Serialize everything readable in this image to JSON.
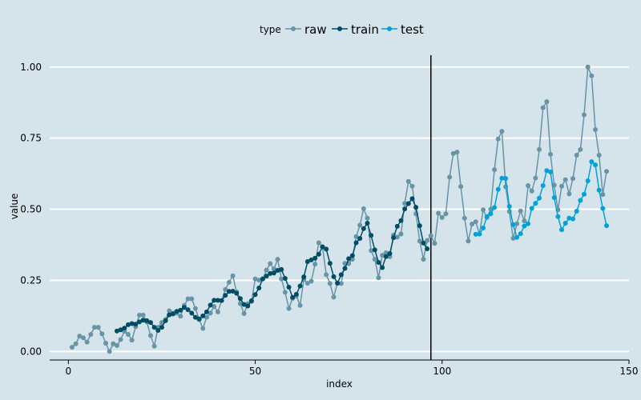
{
  "chart_data": {
    "type": "line",
    "xlabel": "index",
    "ylabel": "value",
    "xlim": [
      -5,
      150
    ],
    "ylim": [
      -0.03,
      1.05
    ],
    "x_ticks": [
      0,
      50,
      100,
      150
    ],
    "y_ticks": [
      0.0,
      0.25,
      0.5,
      0.75,
      1.0
    ],
    "y_tick_labels": [
      "0.00",
      "0.25",
      "0.50",
      "0.75",
      "1.00"
    ],
    "grid": "horizontal major lines",
    "vline_x": 97,
    "legend": {
      "title": "type",
      "position": "top"
    },
    "colors": {
      "background": "#d5e4eb",
      "grid": "#ffffff",
      "raw": "#6794a7",
      "train": "#014d64",
      "test": "#01a2d9",
      "vline": "#000000"
    },
    "series": [
      {
        "name": "raw",
        "x_start": 1,
        "values": [
          0.015,
          0.027,
          0.054,
          0.048,
          0.033,
          0.06,
          0.085,
          0.085,
          0.062,
          0.029,
          0.0,
          0.027,
          0.021,
          0.042,
          0.071,
          0.06,
          0.04,
          0.087,
          0.128,
          0.128,
          0.104,
          0.056,
          0.019,
          0.085,
          0.102,
          0.112,
          0.143,
          0.135,
          0.135,
          0.124,
          0.162,
          0.185,
          0.185,
          0.151,
          0.112,
          0.081,
          0.12,
          0.135,
          0.158,
          0.139,
          0.179,
          0.218,
          0.243,
          0.266,
          0.209,
          0.168,
          0.133,
          0.168,
          0.176,
          0.255,
          0.251,
          0.255,
          0.286,
          0.309,
          0.29,
          0.324,
          0.255,
          0.208,
          0.151,
          0.187,
          0.195,
          0.162,
          0.253,
          0.24,
          0.247,
          0.307,
          0.382,
          0.367,
          0.27,
          0.239,
          0.191,
          0.241,
          0.239,
          0.31,
          0.309,
          0.324,
          0.404,
          0.444,
          0.502,
          0.469,
          0.355,
          0.324,
          0.259,
          0.338,
          0.347,
          0.333,
          0.409,
          0.402,
          0.413,
          0.521,
          0.598,
          0.581,
          0.484,
          0.388,
          0.324,
          0.39,
          0.407,
          0.38,
          0.486,
          0.471,
          0.484,
          0.613,
          0.696,
          0.701,
          0.58,
          0.469,
          0.388,
          0.448,
          0.456,
          0.413,
          0.498,
          0.471,
          0.5,
          0.639,
          0.747,
          0.774,
          0.579,
          0.492,
          0.398,
          0.449,
          0.494,
          0.459,
          0.583,
          0.564,
          0.61,
          0.71,
          0.857,
          0.878,
          0.693,
          0.585,
          0.498,
          0.581,
          0.604,
          0.554,
          0.608,
          0.69,
          0.71,
          0.832,
          1.0,
          0.969,
          0.78,
          0.69,
          0.552,
          0.633
        ]
      },
      {
        "name": "train",
        "x_start": 13,
        "values": [
          0.072,
          0.076,
          0.082,
          0.094,
          0.098,
          0.096,
          0.104,
          0.11,
          0.108,
          0.102,
          0.085,
          0.074,
          0.085,
          0.108,
          0.129,
          0.132,
          0.141,
          0.145,
          0.155,
          0.147,
          0.135,
          0.12,
          0.114,
          0.125,
          0.139,
          0.163,
          0.18,
          0.18,
          0.179,
          0.197,
          0.211,
          0.212,
          0.205,
          0.186,
          0.165,
          0.16,
          0.178,
          0.2,
          0.223,
          0.255,
          0.265,
          0.274,
          0.276,
          0.285,
          0.288,
          0.257,
          0.226,
          0.19,
          0.201,
          0.23,
          0.262,
          0.316,
          0.322,
          0.328,
          0.342,
          0.368,
          0.36,
          0.31,
          0.263,
          0.24,
          0.27,
          0.292,
          0.326,
          0.337,
          0.382,
          0.397,
          0.432,
          0.451,
          0.408,
          0.357,
          0.313,
          0.295,
          0.334,
          0.344,
          0.4,
          0.44,
          0.46,
          0.501,
          0.52,
          0.537,
          0.507,
          0.442,
          0.381,
          0.361
        ]
      },
      {
        "name": "test",
        "x_start": 109,
        "values": [
          0.412,
          0.413,
          0.434,
          0.474,
          0.484,
          0.506,
          0.57,
          0.609,
          0.608,
          0.51,
          0.446,
          0.401,
          0.414,
          0.441,
          0.449,
          0.503,
          0.521,
          0.539,
          0.583,
          0.636,
          0.631,
          0.541,
          0.474,
          0.428,
          0.451,
          0.469,
          0.466,
          0.493,
          0.531,
          0.553,
          0.6,
          0.667,
          0.656,
          0.567,
          0.503,
          0.442
        ]
      }
    ]
  }
}
